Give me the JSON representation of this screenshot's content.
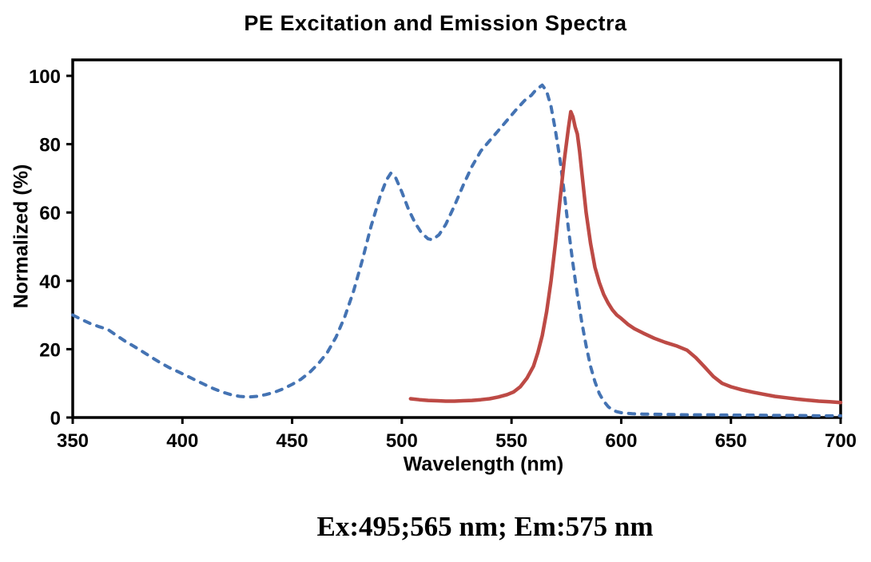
{
  "chart_data": {
    "type": "line",
    "title": "PE Excitation and Emission Spectra",
    "xlabel": "Wavelength (nm)",
    "ylabel": "Normalized (%)",
    "caption": "Ex:495;565 nm; Em:575 nm",
    "xlim": [
      350,
      700
    ],
    "ylim": [
      0,
      105
    ],
    "x_ticks": [
      350,
      400,
      450,
      500,
      550,
      600,
      650,
      700
    ],
    "y_ticks": [
      0,
      20,
      40,
      60,
      80,
      100
    ],
    "grid": false,
    "legend_position": "none",
    "axis_color": "#000000",
    "background": "#ffffff",
    "series": [
      {
        "name": "Excitation",
        "style": "dashed",
        "color": "#4473b3",
        "points": [
          [
            350,
            30
          ],
          [
            354,
            28.7
          ],
          [
            358,
            27.5
          ],
          [
            362,
            26.6
          ],
          [
            366,
            25.8
          ],
          [
            370,
            24
          ],
          [
            374,
            22.3
          ],
          [
            378,
            20.8
          ],
          [
            382,
            19.2
          ],
          [
            386,
            17.6
          ],
          [
            390,
            16
          ],
          [
            394,
            14.6
          ],
          [
            398,
            13.4
          ],
          [
            402,
            12.2
          ],
          [
            406,
            10.9
          ],
          [
            410,
            9.7
          ],
          [
            414,
            8.5
          ],
          [
            418,
            7.5
          ],
          [
            422,
            6.7
          ],
          [
            426,
            6.2
          ],
          [
            430,
            6
          ],
          [
            434,
            6.2
          ],
          [
            438,
            6.7
          ],
          [
            442,
            7.4
          ],
          [
            446,
            8.4
          ],
          [
            450,
            9.7
          ],
          [
            454,
            11.2
          ],
          [
            458,
            13.2
          ],
          [
            462,
            15.8
          ],
          [
            466,
            19
          ],
          [
            470,
            23.5
          ],
          [
            474,
            29.5
          ],
          [
            478,
            37
          ],
          [
            482,
            46
          ],
          [
            486,
            56
          ],
          [
            490,
            64.5
          ],
          [
            493,
            69.5
          ],
          [
            495,
            71.5
          ],
          [
            497,
            70.5
          ],
          [
            500,
            66
          ],
          [
            503,
            61
          ],
          [
            506,
            57
          ],
          [
            509,
            54
          ],
          [
            512,
            52.3
          ],
          [
            514,
            52
          ],
          [
            517,
            53.5
          ],
          [
            520,
            56.5
          ],
          [
            524,
            62
          ],
          [
            528,
            68
          ],
          [
            532,
            73.5
          ],
          [
            536,
            78
          ],
          [
            540,
            81
          ],
          [
            544,
            84
          ],
          [
            548,
            87
          ],
          [
            552,
            90
          ],
          [
            556,
            92.8
          ],
          [
            559,
            94.3
          ],
          [
            561,
            95.8
          ],
          [
            564,
            97.3
          ],
          [
            566,
            95.5
          ],
          [
            568,
            91
          ],
          [
            570,
            84
          ],
          [
            572,
            76
          ],
          [
            574,
            66
          ],
          [
            576,
            55
          ],
          [
            578,
            45
          ],
          [
            580,
            36
          ],
          [
            582,
            28
          ],
          [
            584,
            21
          ],
          [
            586,
            15
          ],
          [
            588,
            10.5
          ],
          [
            590,
            7
          ],
          [
            592,
            4.8
          ],
          [
            594,
            3.2
          ],
          [
            596,
            2.2
          ],
          [
            598,
            1.7
          ],
          [
            600,
            1.4
          ],
          [
            605,
            1.1
          ],
          [
            610,
            1
          ],
          [
            620,
            0.9
          ],
          [
            630,
            0.8
          ],
          [
            640,
            0.8
          ],
          [
            650,
            0.7
          ],
          [
            660,
            0.7
          ],
          [
            670,
            0.6
          ],
          [
            680,
            0.6
          ],
          [
            690,
            0.5
          ],
          [
            700,
            0.5
          ]
        ]
      },
      {
        "name": "Emission",
        "style": "solid",
        "color": "#bd4a45",
        "points": [
          [
            504,
            5.5
          ],
          [
            508,
            5.2
          ],
          [
            512,
            5
          ],
          [
            516,
            4.9
          ],
          [
            520,
            4.8
          ],
          [
            524,
            4.8
          ],
          [
            528,
            4.9
          ],
          [
            532,
            5
          ],
          [
            536,
            5.2
          ],
          [
            540,
            5.5
          ],
          [
            544,
            6
          ],
          [
            548,
            6.7
          ],
          [
            551,
            7.5
          ],
          [
            554,
            9
          ],
          [
            557,
            11.5
          ],
          [
            560,
            15
          ],
          [
            562,
            19
          ],
          [
            564,
            24
          ],
          [
            566,
            31
          ],
          [
            568,
            40
          ],
          [
            570,
            51
          ],
          [
            572,
            63
          ],
          [
            574,
            75
          ],
          [
            576,
            85
          ],
          [
            577,
            89.5
          ],
          [
            578,
            88
          ],
          [
            579,
            85
          ],
          [
            580,
            83
          ],
          [
            581,
            78
          ],
          [
            582,
            72
          ],
          [
            584,
            60
          ],
          [
            586,
            51
          ],
          [
            588,
            44
          ],
          [
            590,
            39.5
          ],
          [
            592,
            36
          ],
          [
            594,
            33.5
          ],
          [
            596,
            31.5
          ],
          [
            598,
            30
          ],
          [
            600,
            29
          ],
          [
            603,
            27.3
          ],
          [
            606,
            26
          ],
          [
            610,
            24.7
          ],
          [
            615,
            23.2
          ],
          [
            620,
            22
          ],
          [
            625,
            21
          ],
          [
            630,
            19.7
          ],
          [
            634,
            17.5
          ],
          [
            638,
            14.8
          ],
          [
            642,
            12
          ],
          [
            646,
            10
          ],
          [
            650,
            9
          ],
          [
            655,
            8.1
          ],
          [
            660,
            7.4
          ],
          [
            665,
            6.8
          ],
          [
            670,
            6.2
          ],
          [
            675,
            5.8
          ],
          [
            680,
            5.4
          ],
          [
            685,
            5.1
          ],
          [
            690,
            4.8
          ],
          [
            695,
            4.6
          ],
          [
            700,
            4.4
          ]
        ]
      }
    ]
  }
}
